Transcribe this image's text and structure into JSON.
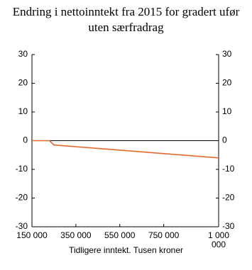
{
  "chart_data": {
    "type": "line",
    "title": "Endring i nettoinntekt fra 2015 for gradert ufør uten særfradrag",
    "x_label": "Tidligere inntekt. Tusen kroner",
    "x": [
      150000,
      230000,
      250000,
      1000000
    ],
    "series": [
      {
        "color": "#e8692e",
        "values": [
          0,
          0,
          -1.5,
          -6
        ]
      }
    ],
    "xlim": [
      150000,
      1000000
    ],
    "xticks": [
      {
        "value": 150000,
        "label": "150 000"
      },
      {
        "value": 350000,
        "label": "350 000"
      },
      {
        "value": 550000,
        "label": "550 000"
      },
      {
        "value": 750000,
        "label": "750 000"
      },
      {
        "value": 1000000,
        "label": "1 000 000"
      }
    ],
    "ylim": [
      -30,
      30
    ],
    "yticks": [
      -30,
      -20,
      -10,
      0,
      10,
      20,
      30
    ],
    "zero_line": true
  }
}
